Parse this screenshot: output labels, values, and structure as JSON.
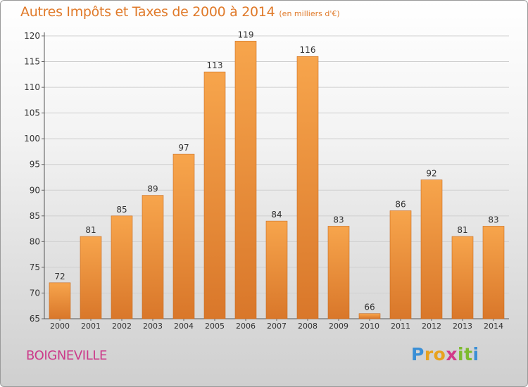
{
  "title": "Autres Impôts et Taxes de 2000 à 2014",
  "subtitle": "(en milliers d'€)",
  "commune": "BOIGNEVILLE",
  "logo": {
    "text": "Proxiti",
    "letters": [
      "P",
      "r",
      "o",
      "x",
      "i",
      "t",
      "i"
    ],
    "colors": [
      "#3a8fd6",
      "#e8a21e",
      "#e8a21e",
      "#d23a8a",
      "#7dbb2e",
      "#7dbb2e",
      "#3a8fd6"
    ]
  },
  "colors": {
    "title": "#e07a2a",
    "commune": "#cc3a8a",
    "bar_light": "#f7a54c",
    "bar_dark": "#d9772a",
    "grid": "#cfcfcf",
    "text": "#333333"
  },
  "chart_data": {
    "type": "bar",
    "categories": [
      "2000",
      "2001",
      "2002",
      "2003",
      "2004",
      "2005",
      "2006",
      "2007",
      "2008",
      "2009",
      "2010",
      "2011",
      "2012",
      "2013",
      "2014"
    ],
    "values": [
      72,
      81,
      85,
      89,
      97,
      113,
      119,
      84,
      116,
      83,
      66,
      86,
      92,
      81,
      83
    ],
    "data_labels": [
      "72",
      "81",
      "85",
      "89",
      "97",
      "113",
      "119",
      "84",
      "116",
      "83",
      "66",
      "86",
      "92",
      "81",
      "83"
    ],
    "y_ticks": [
      65,
      70,
      75,
      80,
      85,
      90,
      95,
      100,
      105,
      110,
      115,
      120
    ],
    "y_tick_labels": [
      "65",
      "70",
      "75",
      "80",
      "85",
      "90",
      "95",
      "100",
      "105",
      "110",
      "115",
      "120"
    ],
    "ylim": [
      65,
      120
    ],
    "grid": true,
    "xlabel": "",
    "ylabel": ""
  }
}
